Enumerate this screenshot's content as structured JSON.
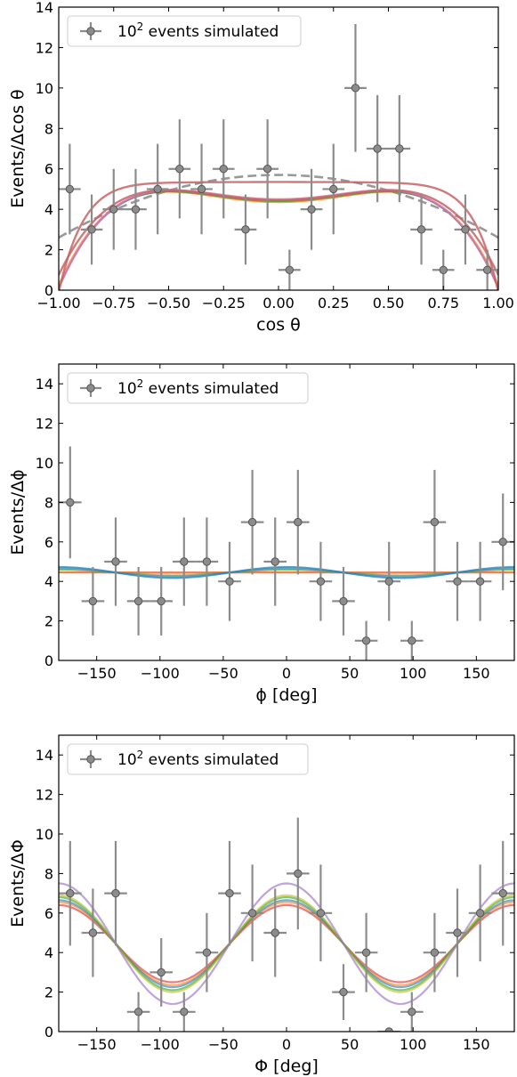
{
  "chart_data": [
    {
      "type": "scatter",
      "xlabel": "cos θ",
      "ylabel": "Events/Δcos θ",
      "xlim": [
        -1.0,
        1.0
      ],
      "ylim": [
        0,
        14
      ],
      "xticks": [
        -1.0,
        -0.75,
        -0.5,
        -0.25,
        0.0,
        0.25,
        0.5,
        0.75,
        1.0
      ],
      "xtick_labels": [
        "−1.00",
        "−0.75",
        "−0.50",
        "−0.25",
        "0.00",
        "0.25",
        "0.50",
        "0.75",
        "1.00"
      ],
      "yticks": [
        0,
        2,
        4,
        6,
        8,
        10,
        12,
        14
      ],
      "ytick_labels": [
        "0",
        "2",
        "4",
        "6",
        "8",
        "10",
        "12",
        "14"
      ],
      "legend": {
        "placement": "top-left",
        "label_base": "10",
        "label_exp": "2",
        "label_rest": " events simulated"
      },
      "x": [
        -0.95,
        -0.85,
        -0.75,
        -0.65,
        -0.55,
        -0.45,
        -0.35,
        -0.25,
        -0.15,
        -0.05,
        0.05,
        0.15,
        0.25,
        0.35,
        0.45,
        0.55,
        0.65,
        0.75,
        0.85,
        0.95
      ],
      "y": [
        5,
        3,
        4,
        4,
        5,
        6,
        5,
        6,
        3,
        6,
        1,
        4,
        5,
        10,
        7,
        7,
        3,
        1,
        3,
        1
      ],
      "xerr": 0.05,
      "dashed_curve": {
        "shape": "parabola",
        "peak": 5.7,
        "edge": 2.6
      },
      "curves": [
        {
          "color": "#ff7f0e",
          "a": 4.45,
          "b": 0.0,
          "c": -4.6
        },
        {
          "color": "#2ca02c",
          "a": 4.45,
          "b": 0.0,
          "c": -4.65
        },
        {
          "color": "#9467bd",
          "a": 4.5,
          "b": 0.0,
          "c": -4.55
        },
        {
          "color": "#d62728",
          "a": 4.5,
          "b": 0.0,
          "c": -4.6
        },
        {
          "color": "#1f77b4",
          "a": 5.4,
          "b": 0.0,
          "c": -4.6
        }
      ],
      "curve_colors": [
        "#ff7f0e",
        "#2ca02c",
        "#9467bd",
        "#d62728"
      ]
    },
    {
      "type": "scatter",
      "xlabel": "ϕ [deg]",
      "ylabel": "Events/Δϕ",
      "xlim": [
        -180,
        180
      ],
      "ylim": [
        0,
        15
      ],
      "xticks": [
        -150,
        -100,
        -50,
        0,
        50,
        100,
        150
      ],
      "xtick_labels": [
        "−150",
        "−100",
        "−50",
        "0",
        "50",
        "100",
        "150"
      ],
      "yticks": [
        0,
        2,
        4,
        6,
        8,
        10,
        12,
        14
      ],
      "ytick_labels": [
        "0",
        "2",
        "4",
        "6",
        "8",
        "10",
        "12",
        "14"
      ],
      "legend": {
        "placement": "top-left",
        "label_base": "10",
        "label_exp": "2",
        "label_rest": " events simulated"
      },
      "x": [
        -171,
        -153,
        -135,
        -117,
        -99,
        -81,
        -63,
        -45,
        -27,
        -9,
        9,
        27,
        45,
        63,
        81,
        99,
        117,
        135,
        153,
        171
      ],
      "y": [
        8,
        3,
        5,
        3,
        3,
        5,
        5,
        4,
        7,
        5,
        7,
        4,
        3,
        1,
        4,
        1,
        7,
        4,
        4,
        6
      ],
      "xerr": 9,
      "curves": [
        {
          "color": "#d62728",
          "mean": 4.45,
          "amp": 0.0
        },
        {
          "color": "#ff7f0e",
          "mean": 4.45,
          "amp": 0.02
        },
        {
          "color": "#2ca02c",
          "mean": 4.45,
          "amp": 0.15
        },
        {
          "color": "#9467bd",
          "mean": 4.45,
          "amp": 0.2
        },
        {
          "color": "#17becf",
          "mean": 4.45,
          "amp": 0.25
        },
        {
          "color": "#1f77b4",
          "mean": 4.45,
          "amp": 0.28
        }
      ]
    },
    {
      "type": "scatter",
      "xlabel": "Φ [deg]",
      "ylabel": "Events/ΔΦ",
      "xlim": [
        -180,
        180
      ],
      "ylim": [
        0,
        15
      ],
      "xticks": [
        -150,
        -100,
        -50,
        0,
        50,
        100,
        150
      ],
      "xtick_labels": [
        "−150",
        "−100",
        "−50",
        "0",
        "50",
        "100",
        "150"
      ],
      "yticks": [
        0,
        2,
        4,
        6,
        8,
        10,
        12,
        14
      ],
      "ytick_labels": [
        "0",
        "2",
        "4",
        "6",
        "8",
        "10",
        "12",
        "14"
      ],
      "legend": {
        "placement": "top-left",
        "label_base": "10",
        "label_exp": "2",
        "label_rest": " events simulated"
      },
      "x": [
        -171,
        -153,
        -135,
        -117,
        -99,
        -81,
        -63,
        -45,
        -27,
        -9,
        9,
        27,
        45,
        63,
        81,
        99,
        117,
        135,
        153,
        171
      ],
      "y": [
        7,
        5,
        7,
        1,
        3,
        1,
        4,
        7,
        6,
        5,
        8,
        6,
        2,
        4,
        0,
        1,
        4,
        5,
        6,
        7
      ],
      "xerr": 9,
      "curves": [
        {
          "color": "#d62728",
          "mean": 4.45,
          "amp": 1.95
        },
        {
          "color": "#ff7f0e",
          "mean": 4.45,
          "amp": 2.1
        },
        {
          "color": "#1f77b4",
          "mean": 4.45,
          "amp": 2.2
        },
        {
          "color": "#2ca02c",
          "mean": 4.45,
          "amp": 2.35
        },
        {
          "color": "#bcbd22",
          "mean": 4.45,
          "amp": 2.45
        },
        {
          "color": "#9467bd",
          "mean": 4.45,
          "amp": 3.05
        }
      ]
    }
  ]
}
